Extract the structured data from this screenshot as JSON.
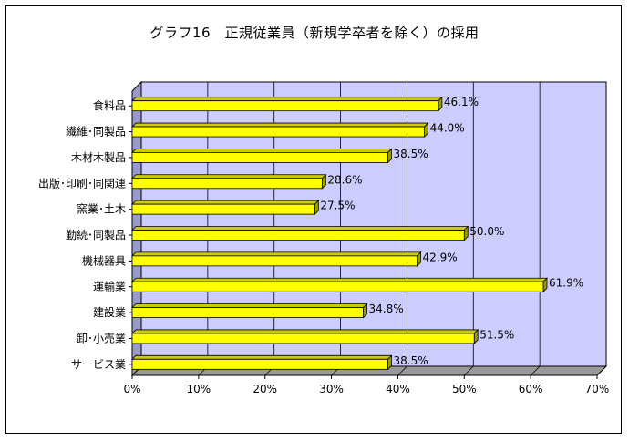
{
  "chart_data": {
    "type": "bar",
    "orientation": "horizontal",
    "title": "グラフ16　正規従業員（新規学卒者を除く）の採用",
    "categories": [
      "食料品",
      "繊維･同製品",
      "木材木製品",
      "出版･印刷･同関連",
      "窯業･土木",
      "勤続･同製品",
      "機械器具",
      "運輸業",
      "建設業",
      "卸･小売業",
      "サービス業"
    ],
    "values": [
      46.1,
      44.0,
      38.5,
      28.6,
      27.5,
      50.0,
      42.9,
      61.9,
      34.8,
      51.5,
      38.5
    ],
    "data_labels": [
      "46.1%",
      "44.0%",
      "38.5%",
      "28.6%",
      "27.5%",
      "50.0%",
      "42.9%",
      "61.9%",
      "34.8%",
      "51.5%",
      "38.5%"
    ],
    "x_ticks": [
      "0%",
      "10%",
      "20%",
      "30%",
      "40%",
      "50%",
      "60%",
      "70%"
    ],
    "xlim": [
      0,
      70
    ],
    "grid": true,
    "colors": {
      "bar": "#ffff00",
      "bar_side": "#999900",
      "bar_top": "#cccc00",
      "plot_bg": "#ccccff",
      "floor": "#999999"
    }
  }
}
